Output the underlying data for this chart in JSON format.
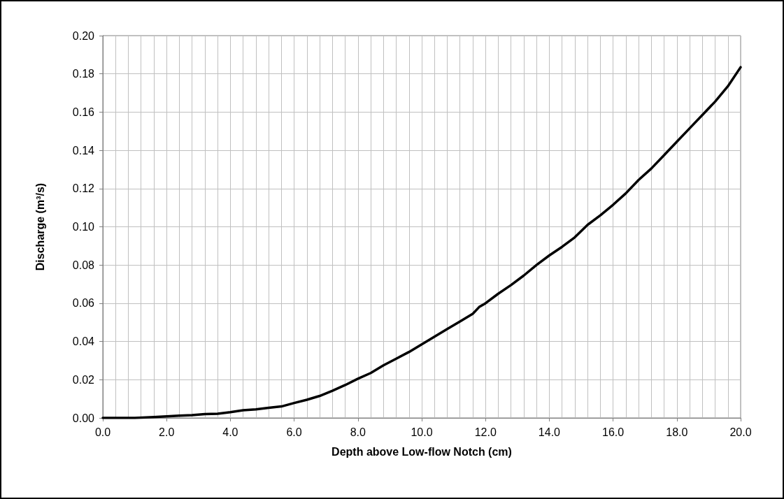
{
  "chart_data": {
    "type": "line",
    "xlabel": "Depth above Low-flow Notch (cm)",
    "ylabel": "Discharge (m³/s)",
    "x": [
      0,
      1.0,
      1.6,
      2.0,
      2.4,
      2.8,
      3.2,
      3.6,
      4.0,
      4.4,
      4.8,
      5.2,
      5.6,
      6.0,
      6.4,
      6.8,
      7.2,
      7.6,
      8.0,
      8.4,
      8.8,
      9.2,
      9.6,
      10.0,
      10.4,
      10.8,
      11.2,
      11.6,
      11.8,
      12.0,
      12.4,
      12.8,
      13.2,
      13.6,
      14.0,
      14.4,
      14.8,
      15.2,
      15.6,
      16.0,
      16.4,
      16.8,
      17.2,
      17.6,
      18.0,
      18.4,
      18.8,
      19.2,
      19.6,
      20.0
    ],
    "series": [
      {
        "color": "#000000",
        "values": [
          0,
          0,
          0.0005,
          0.0008,
          0.0012,
          0.0015,
          0.002,
          0.0022,
          0.003,
          0.004,
          0.0045,
          0.0053,
          0.006,
          0.0078,
          0.0095,
          0.0115,
          0.0142,
          0.0172,
          0.0205,
          0.0235,
          0.0275,
          0.031,
          0.0345,
          0.0385,
          0.0425,
          0.0465,
          0.0505,
          0.0545,
          0.058,
          0.06,
          0.065,
          0.0695,
          0.0745,
          0.08,
          0.085,
          0.0895,
          0.0945,
          0.101,
          0.106,
          0.1115,
          0.1175,
          0.1245,
          0.1305,
          0.1375,
          0.1445,
          0.1515,
          0.1585,
          0.1655,
          0.1735,
          0.1835
        ]
      }
    ],
    "xlim": [
      0,
      20
    ],
    "xticks": [
      {
        "value": 0,
        "label": "0.0"
      },
      {
        "value": 0.4,
        "label": null
      },
      {
        "value": 0.8,
        "label": null
      },
      {
        "value": 1.2,
        "label": null
      },
      {
        "value": 1.6,
        "label": null
      },
      {
        "value": 2,
        "label": "2.0"
      },
      {
        "value": 2.4,
        "label": null
      },
      {
        "value": 2.8,
        "label": null
      },
      {
        "value": 3.2,
        "label": null
      },
      {
        "value": 3.6,
        "label": null
      },
      {
        "value": 4,
        "label": "4.0"
      },
      {
        "value": 4.4,
        "label": null
      },
      {
        "value": 4.8,
        "label": null
      },
      {
        "value": 5.2,
        "label": null
      },
      {
        "value": 5.6,
        "label": null
      },
      {
        "value": 6,
        "label": "6.0"
      },
      {
        "value": 6.4,
        "label": null
      },
      {
        "value": 6.8,
        "label": null
      },
      {
        "value": 7.2,
        "label": null
      },
      {
        "value": 7.6,
        "label": null
      },
      {
        "value": 8,
        "label": "8.0"
      },
      {
        "value": 8.4,
        "label": null
      },
      {
        "value": 8.8,
        "label": null
      },
      {
        "value": 9.2,
        "label": null
      },
      {
        "value": 9.6,
        "label": null
      },
      {
        "value": 10,
        "label": "10.0"
      },
      {
        "value": 10.4,
        "label": null
      },
      {
        "value": 10.8,
        "label": null
      },
      {
        "value": 11.2,
        "label": null
      },
      {
        "value": 11.6,
        "label": null
      },
      {
        "value": 12,
        "label": "12.0"
      },
      {
        "value": 12.4,
        "label": null
      },
      {
        "value": 12.8,
        "label": null
      },
      {
        "value": 13.2,
        "label": null
      },
      {
        "value": 13.6,
        "label": null
      },
      {
        "value": 14,
        "label": "14.0"
      },
      {
        "value": 14.4,
        "label": null
      },
      {
        "value": 14.8,
        "label": null
      },
      {
        "value": 15.2,
        "label": null
      },
      {
        "value": 15.6,
        "label": null
      },
      {
        "value": 16,
        "label": "16.0"
      },
      {
        "value": 16.4,
        "label": null
      },
      {
        "value": 16.8,
        "label": null
      },
      {
        "value": 17.2,
        "label": null
      },
      {
        "value": 17.6,
        "label": null
      },
      {
        "value": 18,
        "label": "18.0"
      },
      {
        "value": 18.4,
        "label": null
      },
      {
        "value": 18.8,
        "label": null
      },
      {
        "value": 19.2,
        "label": null
      },
      {
        "value": 19.6,
        "label": null
      },
      {
        "value": 20,
        "label": "20.0"
      }
    ],
    "ylim": [
      0,
      0.2
    ],
    "yticks": [
      {
        "value": 0,
        "label": "0.00"
      },
      {
        "value": 0.02,
        "label": "0.02"
      },
      {
        "value": 0.04,
        "label": "0.04"
      },
      {
        "value": 0.06,
        "label": "0.06"
      },
      {
        "value": 0.08,
        "label": "0.08"
      },
      {
        "value": 0.1,
        "label": "0.10"
      },
      {
        "value": 0.12,
        "label": "0.12"
      },
      {
        "value": 0.14,
        "label": "0.14"
      },
      {
        "value": 0.16,
        "label": "0.16"
      },
      {
        "value": 0.18,
        "label": "0.18"
      },
      {
        "value": 0.2,
        "label": "0.20"
      }
    ],
    "grid": true,
    "marker": "none",
    "line_style": "solid"
  }
}
